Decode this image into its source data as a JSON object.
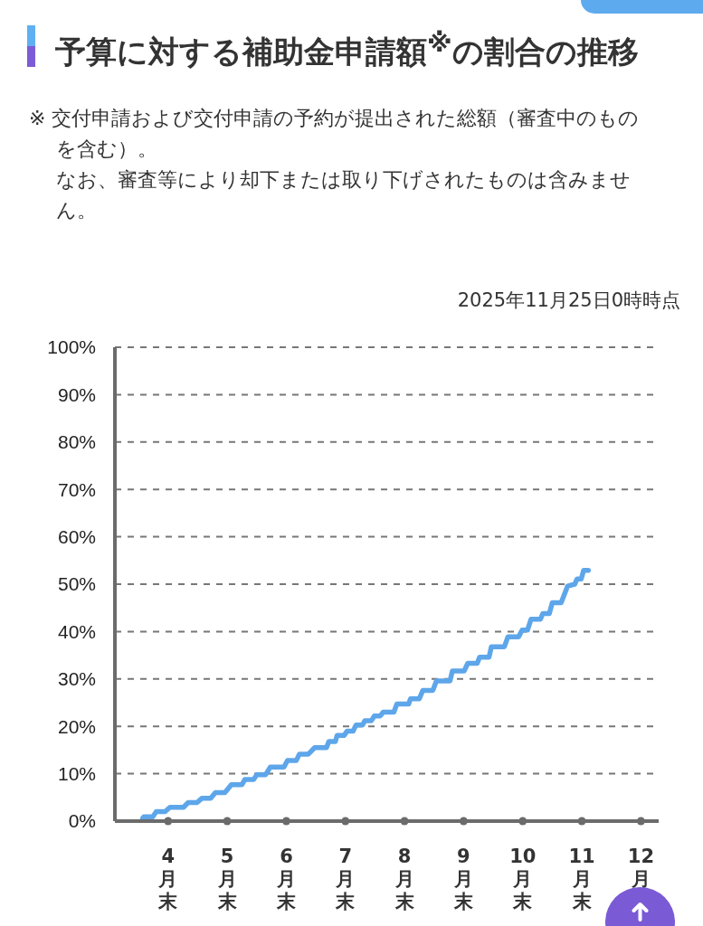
{
  "chart_data": {
    "type": "line",
    "title": "予算に対する補助金申請額$^{※}$の割合の推移",
    "subtitle": "2025年11月25日0時時点",
    "annotations": [
      "※ 交付申請および交付申請の予約が提出された総額（審査中のものを含む）。",
      "なお、審査等により却下または取り下げされたものは含みません。"
    ],
    "x": [
      3.57,
      3.59,
      3.74,
      3.8,
      3.95,
      4.03,
      4.26,
      4.34,
      4.49,
      4.57,
      4.72,
      4.8,
      4.96,
      5.07,
      5.25,
      5.3,
      5.45,
      5.5,
      5.65,
      5.73,
      5.96,
      6.02,
      6.17,
      6.22,
      6.37,
      6.48,
      6.68,
      6.72,
      6.83,
      6.86,
      6.98,
      7.03,
      7.13,
      7.18,
      7.29,
      7.33,
      7.44,
      7.49,
      7.59,
      7.64,
      7.82,
      7.87,
      8.07,
      8.1,
      8.25,
      8.31,
      8.48,
      8.54,
      8.77,
      8.81,
      9.01,
      9.07,
      9.23,
      9.27,
      9.43,
      9.47,
      9.69,
      9.75,
      9.93,
      9.99,
      10.08,
      10.14,
      10.3,
      10.34,
      10.45,
      10.5,
      10.65,
      10.76,
      10.88,
      10.92,
      10.99,
      11.03,
      11.11
    ],
    "values": [
      0.6,
      0.9,
      0.9,
      2.0,
      2.0,
      2.9,
      2.9,
      3.9,
      3.9,
      4.8,
      4.8,
      6.0,
      6.0,
      7.7,
      7.7,
      8.8,
      8.8,
      9.8,
      9.8,
      11.4,
      11.4,
      12.8,
      12.8,
      14.1,
      14.1,
      15.5,
      15.5,
      16.8,
      16.8,
      18.1,
      18.1,
      19.0,
      19.0,
      20.3,
      20.3,
      21.2,
      21.2,
      22.2,
      22.2,
      23.0,
      23.0,
      24.7,
      24.7,
      25.8,
      25.8,
      27.6,
      27.6,
      29.6,
      29.6,
      31.7,
      31.7,
      33.3,
      33.3,
      34.6,
      34.6,
      36.8,
      36.8,
      38.9,
      38.9,
      40.3,
      40.3,
      42.6,
      42.6,
      43.8,
      43.8,
      46.1,
      46.1,
      49.6,
      50.0,
      51.1,
      51.1,
      52.9,
      52.9
    ],
    "color": "#5ea6ea",
    "xlim": [
      3.1,
      12.3
    ],
    "xticks": [
      {
        "value": 4,
        "label": "4月末"
      },
      {
        "value": 5,
        "label": "5月末"
      },
      {
        "value": 6,
        "label": "6月末"
      },
      {
        "value": 7,
        "label": "7月末"
      },
      {
        "value": 8,
        "label": "8月末"
      },
      {
        "value": 9,
        "label": "9月末"
      },
      {
        "value": 10,
        "label": "10月末"
      },
      {
        "value": 11,
        "label": "11月末"
      },
      {
        "value": 12,
        "label": "12月"
      }
    ],
    "ylim": [
      0,
      100
    ],
    "yticks": [
      {
        "value": 0,
        "label": "0%"
      },
      {
        "value": 10,
        "label": "10%"
      },
      {
        "value": 20,
        "label": "20%"
      },
      {
        "value": 30,
        "label": "30%"
      },
      {
        "value": 40,
        "label": "40%"
      },
      {
        "value": 50,
        "label": "50%"
      },
      {
        "value": 60,
        "label": "60%"
      },
      {
        "value": 70,
        "label": "70%"
      },
      {
        "value": 80,
        "label": "80%"
      },
      {
        "value": 90,
        "label": "90%"
      },
      {
        "value": 100,
        "label": "100%"
      }
    ],
    "grid": "y",
    "line_style": "solid"
  }
}
